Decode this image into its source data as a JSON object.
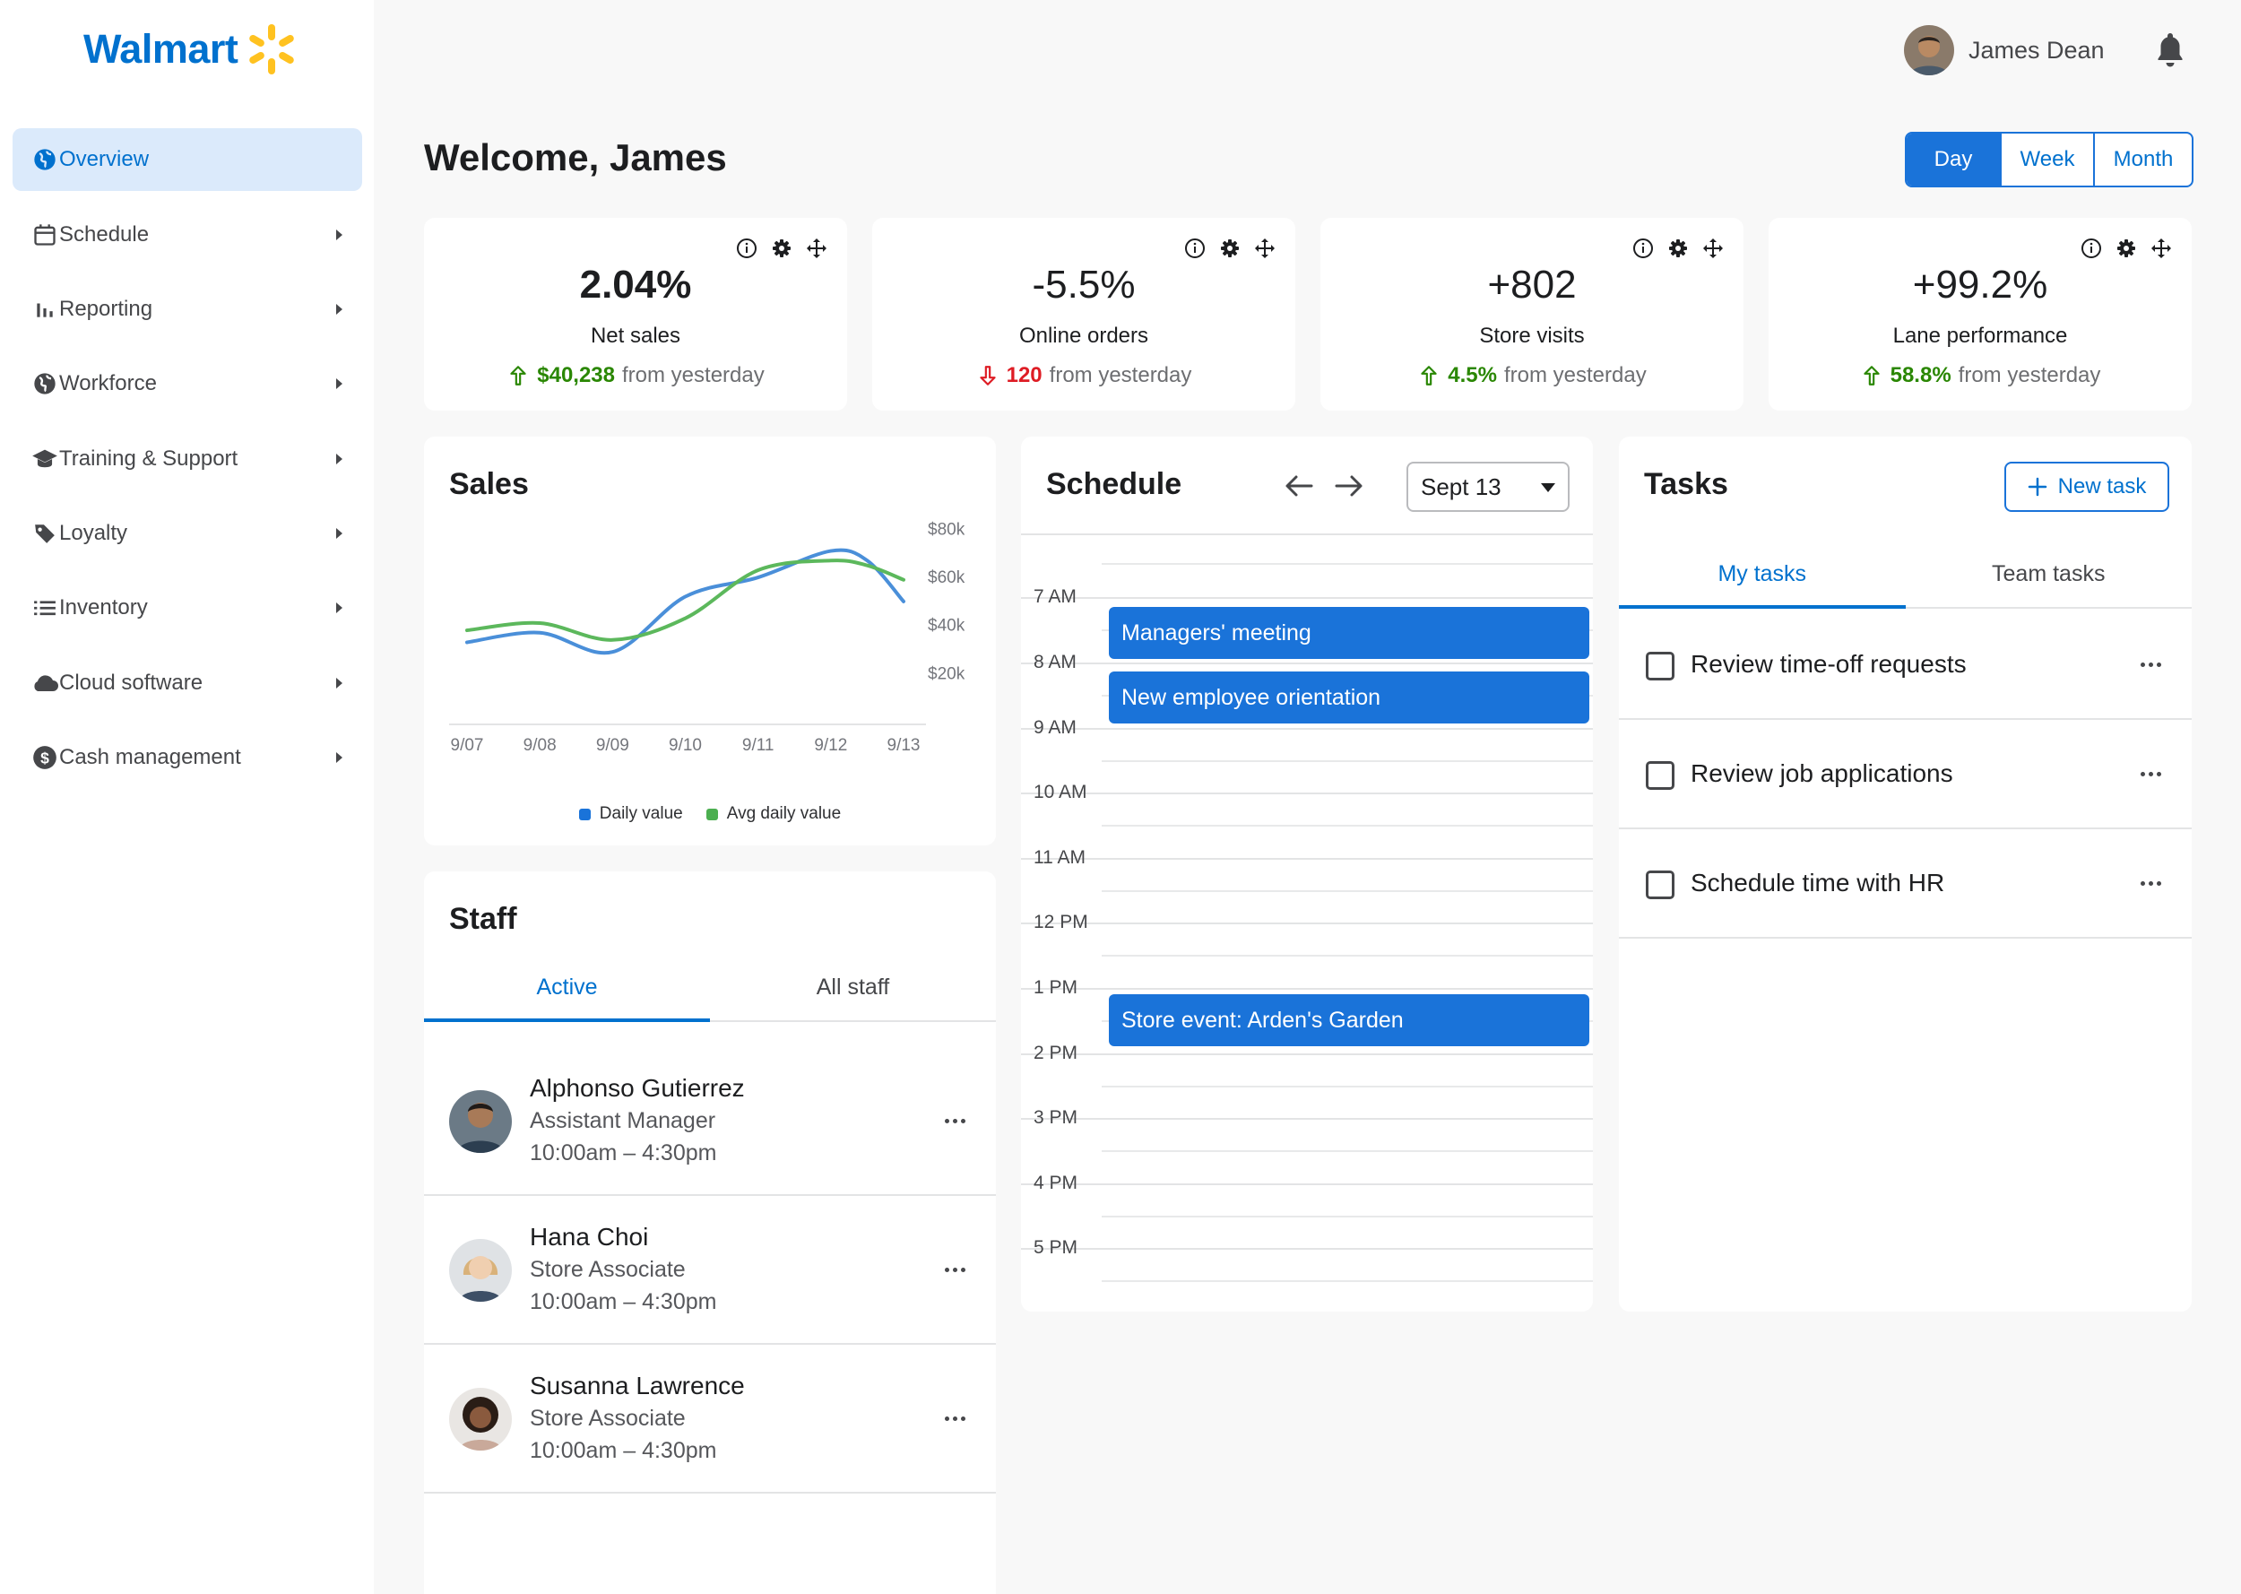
{
  "brand": {
    "name": "Walmart",
    "spark_color": "#ffc220",
    "brand_color": "#0071ce"
  },
  "sidebar": {
    "items": [
      {
        "label": "Overview",
        "icon": "globe-icon",
        "active": true
      },
      {
        "label": "Schedule",
        "icon": "calendar-icon"
      },
      {
        "label": "Reporting",
        "icon": "bar-chart-icon"
      },
      {
        "label": "Workforce",
        "icon": "globe-icon"
      },
      {
        "label": "Training & Support",
        "icon": "graduation-cap-icon"
      },
      {
        "label": "Loyalty",
        "icon": "tag-icon"
      },
      {
        "label": "Inventory",
        "icon": "list-icon"
      },
      {
        "label": "Cloud software",
        "icon": "cloud-icon"
      },
      {
        "label": "Cash management",
        "icon": "dollar-icon"
      }
    ]
  },
  "header": {
    "user_name": "James Dean",
    "welcome": "Welcome, James",
    "range": {
      "day": "Day",
      "week": "Week",
      "month": "Month",
      "selected": "Day"
    }
  },
  "kpis": [
    {
      "value": "2.04%",
      "label": "Net sales",
      "delta": "$40,238",
      "direction": "up",
      "suffix": "from yesterday"
    },
    {
      "value": "-5.5%",
      "label": "Online orders",
      "delta": "120",
      "direction": "down",
      "suffix": "from yesterday"
    },
    {
      "value": "+802",
      "label": "Store visits",
      "delta": "4.5%",
      "direction": "up",
      "suffix": "from yesterday"
    },
    {
      "value": "+99.2%",
      "label": "Lane performance",
      "delta": "58.8%",
      "direction": "up",
      "suffix": "from yesterday"
    }
  ],
  "sales": {
    "title": "Sales",
    "chart_data": {
      "type": "line",
      "categories": [
        "9/07",
        "9/08",
        "9/09",
        "9/10",
        "9/11",
        "9/12",
        "9/13"
      ],
      "y_ticks": [
        "$80k",
        "$60k",
        "$40k",
        "$20k"
      ],
      "ylim": [
        0,
        85
      ],
      "series": [
        {
          "name": "Daily value",
          "color": "#4a8fd9",
          "x": [
            1,
            2,
            3,
            4,
            5,
            6,
            6.5,
            7
          ],
          "y": [
            33,
            37,
            29,
            52,
            60,
            71,
            67,
            50
          ]
        },
        {
          "name": "Avg daily value",
          "color": "#5cb85c",
          "x": [
            1,
            2,
            3,
            4,
            5,
            6,
            6.5,
            7
          ],
          "y": [
            38,
            41,
            34,
            43,
            63,
            67,
            65,
            59
          ]
        }
      ],
      "legend_position": "bottom-center"
    }
  },
  "staff": {
    "title": "Staff",
    "tabs": {
      "active": "Active",
      "all": "All staff"
    },
    "members": [
      {
        "name": "Alphonso Gutierrez",
        "role": "Assistant Manager",
        "hours": "10:00am – 4:30pm"
      },
      {
        "name": "Hana Choi",
        "role": "Store Associate",
        "hours": "10:00am – 4:30pm"
      },
      {
        "name": "Susanna Lawrence",
        "role": "Store Associate",
        "hours": "10:00am – 4:30pm"
      }
    ]
  },
  "schedule": {
    "title": "Schedule",
    "date": "Sept 13",
    "hours": [
      "7 AM",
      "8 AM",
      "9 AM",
      "10 AM",
      "11 AM",
      "12 PM",
      "1 PM",
      "2 PM",
      "3 PM",
      "4 PM",
      "5 PM"
    ],
    "events": [
      {
        "title": "Managers' meeting",
        "start": "7:30 AM"
      },
      {
        "title": "New employee orientation",
        "start": "8:30 AM"
      },
      {
        "title": "Store event: Arden's Garden",
        "start": "1:30 PM"
      }
    ]
  },
  "tasks": {
    "title": "Tasks",
    "new_task": "New task",
    "tabs": {
      "mine": "My tasks",
      "team": "Team tasks"
    },
    "items": [
      {
        "label": "Review time-off requests"
      },
      {
        "label": "Review job applications"
      },
      {
        "label": "Schedule time with HR"
      }
    ]
  }
}
